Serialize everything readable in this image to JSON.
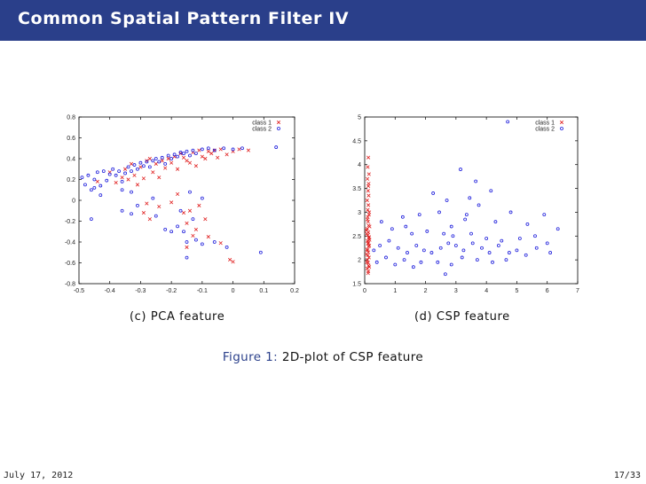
{
  "slide": {
    "title": "Common Spatial Pattern Filter IV",
    "date": "July 17, 2012",
    "page": "17/33"
  },
  "figure": {
    "label": "Figure 1:",
    "text": "2D-plot of CSP feature",
    "sub_captions": [
      "(c) PCA feature",
      "(d) CSP feature"
    ]
  },
  "colors": {
    "class1": "#e02020",
    "class2": "#1a1adb",
    "header": "#2a3f8a"
  },
  "chart_data": [
    {
      "type": "scatter",
      "xlim": [
        -0.5,
        0.2
      ],
      "ylim": [
        -0.8,
        0.8
      ],
      "xticks": [
        -0.5,
        -0.4,
        -0.3,
        -0.2,
        -0.1,
        0,
        0.1,
        0.2
      ],
      "yticks": [
        -0.8,
        -0.6,
        -0.4,
        -0.2,
        0,
        0.2,
        0.4,
        0.6,
        0.8
      ],
      "legend_position": "top-right",
      "series": [
        {
          "name": "class 1",
          "marker": "x",
          "points": [
            [
              -0.44,
              0.18
            ],
            [
              -0.4,
              0.27
            ],
            [
              -0.38,
              0.17
            ],
            [
              -0.36,
              0.22
            ],
            [
              -0.35,
              0.3
            ],
            [
              -0.34,
              0.2
            ],
            [
              -0.33,
              0.35
            ],
            [
              -0.32,
              0.24
            ],
            [
              -0.31,
              0.15
            ],
            [
              -0.3,
              0.32
            ],
            [
              -0.29,
              0.21
            ],
            [
              -0.28,
              0.38
            ],
            [
              -0.27,
              0.4
            ],
            [
              -0.26,
              0.27
            ],
            [
              -0.25,
              0.35
            ],
            [
              -0.24,
              0.22
            ],
            [
              -0.23,
              0.38
            ],
            [
              -0.22,
              0.31
            ],
            [
              -0.21,
              0.4
            ],
            [
              -0.2,
              0.36
            ],
            [
              -0.19,
              0.42
            ],
            [
              -0.18,
              0.3
            ],
            [
              -0.17,
              0.45
            ],
            [
              -0.16,
              0.41
            ],
            [
              -0.15,
              0.38
            ],
            [
              -0.14,
              0.36
            ],
            [
              -0.13,
              0.46
            ],
            [
              -0.12,
              0.33
            ],
            [
              -0.11,
              0.48
            ],
            [
              -0.1,
              0.42
            ],
            [
              -0.09,
              0.4
            ],
            [
              -0.08,
              0.47
            ],
            [
              -0.07,
              0.45
            ],
            [
              -0.06,
              0.48
            ],
            [
              -0.05,
              0.41
            ],
            [
              -0.04,
              0.49
            ],
            [
              -0.02,
              0.44
            ],
            [
              0.0,
              0.47
            ],
            [
              0.02,
              0.49
            ],
            [
              0.05,
              0.48
            ],
            [
              -0.18,
              0.06
            ],
            [
              -0.16,
              -0.12
            ],
            [
              -0.14,
              -0.1
            ],
            [
              -0.15,
              -0.22
            ],
            [
              -0.13,
              -0.34
            ],
            [
              -0.11,
              -0.05
            ],
            [
              -0.09,
              -0.18
            ],
            [
              -0.28,
              -0.03
            ],
            [
              -0.24,
              -0.06
            ],
            [
              -0.2,
              -0.02
            ],
            [
              -0.04,
              -0.41
            ],
            [
              0.0,
              -0.59
            ],
            [
              -0.27,
              -0.18
            ],
            [
              -0.29,
              -0.12
            ],
            [
              -0.08,
              -0.35
            ],
            [
              -0.15,
              -0.45
            ],
            [
              -0.01,
              -0.57
            ],
            [
              -0.12,
              -0.28
            ]
          ]
        },
        {
          "name": "class 2",
          "marker": "o",
          "points": [
            [
              -0.49,
              0.22
            ],
            [
              -0.48,
              0.15
            ],
            [
              -0.47,
              0.24
            ],
            [
              -0.46,
              0.1
            ],
            [
              -0.45,
              0.2
            ],
            [
              -0.44,
              0.27
            ],
            [
              -0.43,
              0.14
            ],
            [
              -0.42,
              0.28
            ],
            [
              -0.41,
              0.19
            ],
            [
              -0.4,
              0.25
            ],
            [
              -0.39,
              0.3
            ],
            [
              -0.38,
              0.24
            ],
            [
              -0.37,
              0.28
            ],
            [
              -0.36,
              0.18
            ],
            [
              -0.35,
              0.26
            ],
            [
              -0.34,
              0.32
            ],
            [
              -0.33,
              0.28
            ],
            [
              -0.32,
              0.34
            ],
            [
              -0.31,
              0.3
            ],
            [
              -0.3,
              0.36
            ],
            [
              -0.29,
              0.33
            ],
            [
              -0.28,
              0.37
            ],
            [
              -0.27,
              0.32
            ],
            [
              -0.26,
              0.38
            ],
            [
              -0.25,
              0.4
            ],
            [
              -0.24,
              0.37
            ],
            [
              -0.23,
              0.41
            ],
            [
              -0.22,
              0.35
            ],
            [
              -0.21,
              0.43
            ],
            [
              -0.2,
              0.4
            ],
            [
              -0.19,
              0.44
            ],
            [
              -0.18,
              0.42
            ],
            [
              -0.17,
              0.46
            ],
            [
              -0.16,
              0.45
            ],
            [
              -0.15,
              0.47
            ],
            [
              -0.14,
              0.43
            ],
            [
              -0.13,
              0.48
            ],
            [
              -0.12,
              0.45
            ],
            [
              -0.1,
              0.49
            ],
            [
              -0.08,
              0.5
            ],
            [
              -0.06,
              0.48
            ],
            [
              -0.03,
              0.5
            ],
            [
              0.0,
              0.49
            ],
            [
              0.03,
              0.5
            ],
            [
              0.14,
              0.51
            ],
            [
              -0.45,
              0.12
            ],
            [
              -0.43,
              0.05
            ],
            [
              -0.36,
              0.1
            ],
            [
              -0.33,
              0.08
            ],
            [
              -0.46,
              -0.18
            ],
            [
              -0.36,
              -0.1
            ],
            [
              -0.33,
              -0.13
            ],
            [
              -0.31,
              -0.05
            ],
            [
              -0.25,
              -0.15
            ],
            [
              -0.22,
              -0.28
            ],
            [
              -0.2,
              -0.3
            ],
            [
              -0.18,
              -0.25
            ],
            [
              -0.16,
              -0.3
            ],
            [
              -0.15,
              -0.4
            ],
            [
              -0.15,
              -0.55
            ],
            [
              -0.12,
              -0.38
            ],
            [
              -0.1,
              -0.42
            ],
            [
              -0.06,
              -0.4
            ],
            [
              -0.02,
              -0.45
            ],
            [
              0.09,
              -0.5
            ],
            [
              -0.17,
              -0.1
            ],
            [
              -0.13,
              -0.18
            ],
            [
              -0.1,
              0.02
            ],
            [
              -0.14,
              0.08
            ],
            [
              -0.26,
              0.02
            ]
          ]
        }
      ]
    },
    {
      "type": "scatter",
      "xlim": [
        0,
        7
      ],
      "ylim": [
        1.5,
        5
      ],
      "xticks": [
        0,
        1,
        2,
        3,
        4,
        5,
        6,
        7
      ],
      "yticks": [
        1.5,
        2,
        2.5,
        3,
        3.5,
        4,
        4.5,
        5
      ],
      "legend_position": "top-right",
      "series": [
        {
          "name": "class 1",
          "marker": "x",
          "points": [
            [
              0.12,
              4.15
            ],
            [
              0.1,
              3.95
            ],
            [
              0.14,
              3.8
            ],
            [
              0.09,
              3.7
            ],
            [
              0.12,
              3.55
            ],
            [
              0.11,
              3.45
            ],
            [
              0.13,
              3.35
            ],
            [
              0.08,
              3.25
            ],
            [
              0.12,
              3.15
            ],
            [
              0.1,
              3.05
            ],
            [
              0.14,
              2.95
            ],
            [
              0.09,
              2.85
            ],
            [
              0.11,
              2.8
            ],
            [
              0.13,
              2.72
            ],
            [
              0.08,
              2.65
            ],
            [
              0.12,
              2.58
            ],
            [
              0.1,
              2.52
            ],
            [
              0.14,
              2.46
            ],
            [
              0.09,
              2.4
            ],
            [
              0.11,
              2.34
            ],
            [
              0.13,
              2.28
            ],
            [
              0.08,
              2.22
            ],
            [
              0.12,
              2.16
            ],
            [
              0.1,
              2.1
            ],
            [
              0.14,
              2.05
            ],
            [
              0.09,
              2.0
            ],
            [
              0.11,
              1.94
            ],
            [
              0.13,
              1.88
            ],
            [
              0.08,
              1.82
            ],
            [
              0.12,
              1.76
            ],
            [
              0.15,
              2.3
            ],
            [
              0.07,
              2.55
            ],
            [
              0.16,
              2.7
            ],
            [
              0.06,
              2.12
            ],
            [
              0.15,
              3.0
            ],
            [
              0.07,
              1.95
            ],
            [
              0.16,
              2.42
            ],
            [
              0.06,
              2.62
            ],
            [
              0.15,
              1.85
            ],
            [
              0.1,
              2.9
            ],
            [
              0.12,
              2.36
            ],
            [
              0.09,
              2.2
            ],
            [
              0.13,
              3.6
            ],
            [
              0.11,
              1.72
            ],
            [
              0.14,
              2.48
            ]
          ]
        },
        {
          "name": "class 2",
          "marker": "o",
          "points": [
            [
              4.7,
              4.9
            ],
            [
              3.15,
              3.9
            ],
            [
              2.25,
              3.4
            ],
            [
              3.65,
              3.65
            ],
            [
              4.15,
              3.45
            ],
            [
              2.7,
              3.25
            ],
            [
              3.45,
              3.3
            ],
            [
              3.75,
              3.15
            ],
            [
              4.8,
              3.0
            ],
            [
              5.9,
              2.95
            ],
            [
              1.25,
              2.9
            ],
            [
              1.8,
              2.95
            ],
            [
              2.45,
              3.0
            ],
            [
              3.3,
              2.85
            ],
            [
              4.3,
              2.8
            ],
            [
              5.35,
              2.75
            ],
            [
              6.35,
              2.65
            ],
            [
              0.55,
              2.8
            ],
            [
              0.9,
              2.65
            ],
            [
              1.55,
              2.55
            ],
            [
              2.05,
              2.6
            ],
            [
              2.6,
              2.55
            ],
            [
              2.9,
              2.5
            ],
            [
              3.5,
              2.55
            ],
            [
              4.0,
              2.45
            ],
            [
              4.5,
              2.4
            ],
            [
              5.1,
              2.45
            ],
            [
              5.6,
              2.5
            ],
            [
              6.0,
              2.35
            ],
            [
              0.3,
              2.2
            ],
            [
              0.5,
              2.3
            ],
            [
              0.8,
              2.4
            ],
            [
              1.1,
              2.25
            ],
            [
              1.4,
              2.15
            ],
            [
              1.7,
              2.3
            ],
            [
              1.95,
              2.2
            ],
            [
              2.2,
              2.15
            ],
            [
              2.5,
              2.25
            ],
            [
              2.75,
              2.35
            ],
            [
              3.0,
              2.3
            ],
            [
              3.25,
              2.2
            ],
            [
              3.55,
              2.35
            ],
            [
              3.85,
              2.25
            ],
            [
              4.1,
              2.15
            ],
            [
              4.4,
              2.3
            ],
            [
              4.75,
              2.15
            ],
            [
              5.0,
              2.2
            ],
            [
              5.3,
              2.1
            ],
            [
              5.65,
              2.25
            ],
            [
              6.1,
              2.15
            ],
            [
              0.4,
              1.95
            ],
            [
              0.7,
              2.05
            ],
            [
              1.0,
              1.9
            ],
            [
              1.3,
              2.0
            ],
            [
              1.6,
              1.85
            ],
            [
              1.85,
              1.95
            ],
            [
              2.4,
              1.95
            ],
            [
              2.85,
              1.9
            ],
            [
              3.2,
              2.05
            ],
            [
              3.7,
              2.0
            ],
            [
              4.2,
              1.95
            ],
            [
              4.65,
              2.0
            ],
            [
              2.65,
              1.7
            ],
            [
              1.35,
              2.7
            ],
            [
              2.85,
              2.7
            ],
            [
              3.35,
              2.95
            ]
          ]
        }
      ]
    }
  ]
}
